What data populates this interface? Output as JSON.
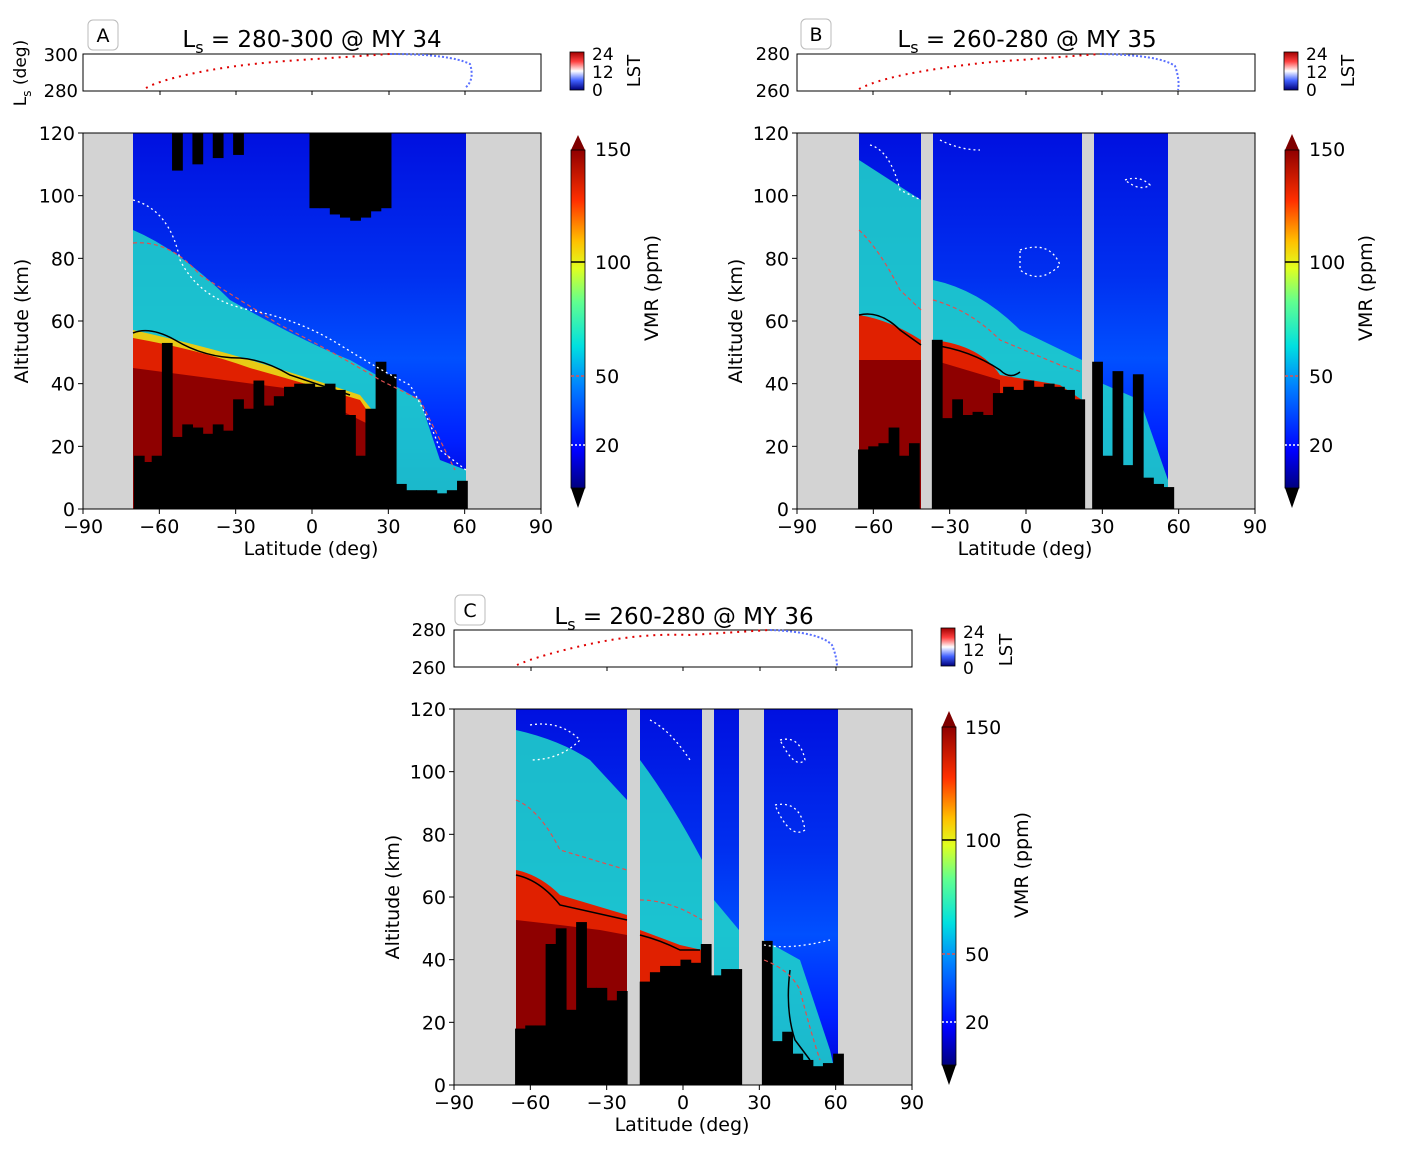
{
  "figure": {
    "panels": [
      {
        "letter": "A",
        "title_main": "L",
        "title_sub": "s",
        "title_rest": " = 280-300 @ MY 34"
      },
      {
        "letter": "B",
        "title_main": "L",
        "title_sub": "s",
        "title_rest": " = 260-280 @ MY 35"
      },
      {
        "letter": "C",
        "title_main": "L",
        "title_sub": "s",
        "title_rest": " = 260-280 @ MY 36"
      }
    ],
    "ls_axis_main": "L",
    "ls_axis_sub": "s",
    "ls_axis_rest": " (deg)",
    "lst_label": "LST",
    "lst_ticks": [
      "24",
      "12",
      "0"
    ],
    "vmr_label": "VMR (ppm)",
    "vmr_ticks": [
      "150",
      "100",
      "50",
      "20"
    ],
    "xlabel": "Latitude (deg)",
    "ylabel": "Altitude (km)",
    "xticks": [
      "−90",
      "−60",
      "−30",
      "0",
      "30",
      "60",
      "90"
    ],
    "yticks": [
      "120",
      "100",
      "80",
      "60",
      "40",
      "20",
      "0"
    ],
    "ls_ticks": [
      [
        "300",
        "280"
      ],
      [
        "280",
        "260"
      ],
      [
        "280",
        "260"
      ]
    ],
    "colors": {
      "nodata": "#d3d3d3",
      "surface": "#000000",
      "dawn": "#4060ff",
      "dusk": "#e00000"
    }
  },
  "chart_data": [
    {
      "type": "heatmap",
      "panel": "A",
      "xlim": [
        -90,
        90
      ],
      "ylim": [
        0,
        120
      ],
      "ls_range": [
        280,
        300
      ],
      "coverage": [
        [
          -70,
          60
        ]
      ],
      "surface_top_km": [
        [
          -70,
          17
        ],
        [
          -66,
          15
        ],
        [
          -63,
          17
        ],
        [
          -59,
          53
        ],
        [
          -55,
          23
        ],
        [
          -51,
          27
        ],
        [
          -47,
          26
        ],
        [
          -43,
          24
        ],
        [
          -39,
          27
        ],
        [
          -35,
          25
        ],
        [
          -31,
          35
        ],
        [
          -27,
          32
        ],
        [
          -23,
          41
        ],
        [
          -19,
          33
        ],
        [
          -15,
          36
        ],
        [
          -11,
          39
        ],
        [
          -7,
          40
        ],
        [
          -3,
          40
        ],
        [
          1,
          39
        ],
        [
          5,
          40
        ],
        [
          9,
          38
        ],
        [
          13,
          30
        ],
        [
          17,
          17
        ],
        [
          21,
          32
        ],
        [
          25,
          47
        ],
        [
          29,
          43
        ],
        [
          33,
          8
        ],
        [
          37,
          6
        ],
        [
          41,
          6
        ],
        [
          45,
          6
        ],
        [
          49,
          5
        ],
        [
          53,
          6
        ],
        [
          57,
          9
        ]
      ],
      "surface_gap_top_km": [
        [
          -55,
          120,
          108
        ],
        [
          -47,
          120,
          110
        ],
        [
          -39,
          120,
          112
        ],
        [
          -31,
          120,
          113
        ],
        [
          -1,
          120,
          96
        ],
        [
          3,
          120,
          96
        ],
        [
          7,
          120,
          94
        ],
        [
          11,
          120,
          93
        ],
        [
          15,
          120,
          92
        ],
        [
          19,
          120,
          93
        ],
        [
          23,
          120,
          95
        ],
        [
          27,
          120,
          96
        ]
      ],
      "high_vmr_top_km": [
        [
          -70,
          57
        ],
        [
          -60,
          53
        ],
        [
          -50,
          48
        ],
        [
          -40,
          46
        ],
        [
          -30,
          44
        ],
        [
          -20,
          43
        ],
        [
          -10,
          41
        ],
        [
          0,
          40
        ],
        [
          10,
          38
        ],
        [
          20,
          36
        ]
      ]
    },
    {
      "type": "heatmap",
      "panel": "B",
      "xlim": [
        -90,
        90
      ],
      "ylim": [
        0,
        120
      ],
      "ls_range": [
        260,
        280
      ],
      "coverage": [
        [
          -66,
          -40
        ],
        [
          -37,
          23
        ],
        [
          26,
          58
        ]
      ],
      "surface_top_km": [
        [
          -66,
          19
        ],
        [
          -62,
          20
        ],
        [
          -58,
          21
        ],
        [
          -54,
          26
        ],
        [
          -50,
          17
        ],
        [
          -46,
          21
        ],
        [
          -37,
          54
        ],
        [
          -33,
          29
        ],
        [
          -29,
          35
        ],
        [
          -25,
          30
        ],
        [
          -21,
          31
        ],
        [
          -17,
          30
        ],
        [
          -13,
          37
        ],
        [
          -9,
          39
        ],
        [
          -5,
          38
        ],
        [
          -1,
          41
        ],
        [
          3,
          39
        ],
        [
          7,
          40
        ],
        [
          11,
          39
        ],
        [
          15,
          38
        ],
        [
          19,
          35
        ],
        [
          26,
          47
        ],
        [
          30,
          17
        ],
        [
          34,
          44
        ],
        [
          38,
          14
        ],
        [
          42,
          43
        ],
        [
          46,
          10
        ],
        [
          50,
          8
        ],
        [
          54,
          7
        ]
      ],
      "high_vmr_top_km": [
        [
          -66,
          60
        ],
        [
          -50,
          55
        ],
        [
          -37,
          53
        ],
        [
          -20,
          48
        ],
        [
          -10,
          44
        ],
        [
          0,
          42
        ],
        [
          10,
          41
        ]
      ]
    },
    {
      "type": "heatmap",
      "panel": "C",
      "xlim": [
        -90,
        90
      ],
      "ylim": [
        0,
        120
      ],
      "ls_range": [
        260,
        280
      ],
      "coverage": [
        [
          -66,
          -22
        ],
        [
          -17,
          8
        ],
        [
          11,
          21
        ],
        [
          31,
          60
        ]
      ],
      "surface_top_km": [
        [
          -66,
          18
        ],
        [
          -62,
          19
        ],
        [
          -58,
          19
        ],
        [
          -54,
          45
        ],
        [
          -50,
          50
        ],
        [
          -46,
          24
        ],
        [
          -42,
          52
        ],
        [
          -38,
          31
        ],
        [
          -34,
          31
        ],
        [
          -30,
          27
        ],
        [
          -26,
          30
        ],
        [
          -17,
          33
        ],
        [
          -13,
          36
        ],
        [
          -9,
          38
        ],
        [
          -5,
          38
        ],
        [
          -1,
          40
        ],
        [
          3,
          39
        ],
        [
          7,
          45
        ],
        [
          11,
          35
        ],
        [
          15,
          37
        ],
        [
          19,
          37
        ],
        [
          31,
          46
        ],
        [
          35,
          14
        ],
        [
          39,
          17
        ],
        [
          43,
          10
        ],
        [
          47,
          8
        ],
        [
          51,
          6
        ],
        [
          55,
          7
        ],
        [
          59,
          10
        ]
      ],
      "high_vmr_top_km": [
        [
          -66,
          67
        ],
        [
          -55,
          62
        ],
        [
          -45,
          56
        ],
        [
          -35,
          53
        ],
        [
          -22,
          51
        ],
        [
          -17,
          48
        ],
        [
          -5,
          45
        ],
        [
          5,
          44
        ]
      ]
    }
  ]
}
